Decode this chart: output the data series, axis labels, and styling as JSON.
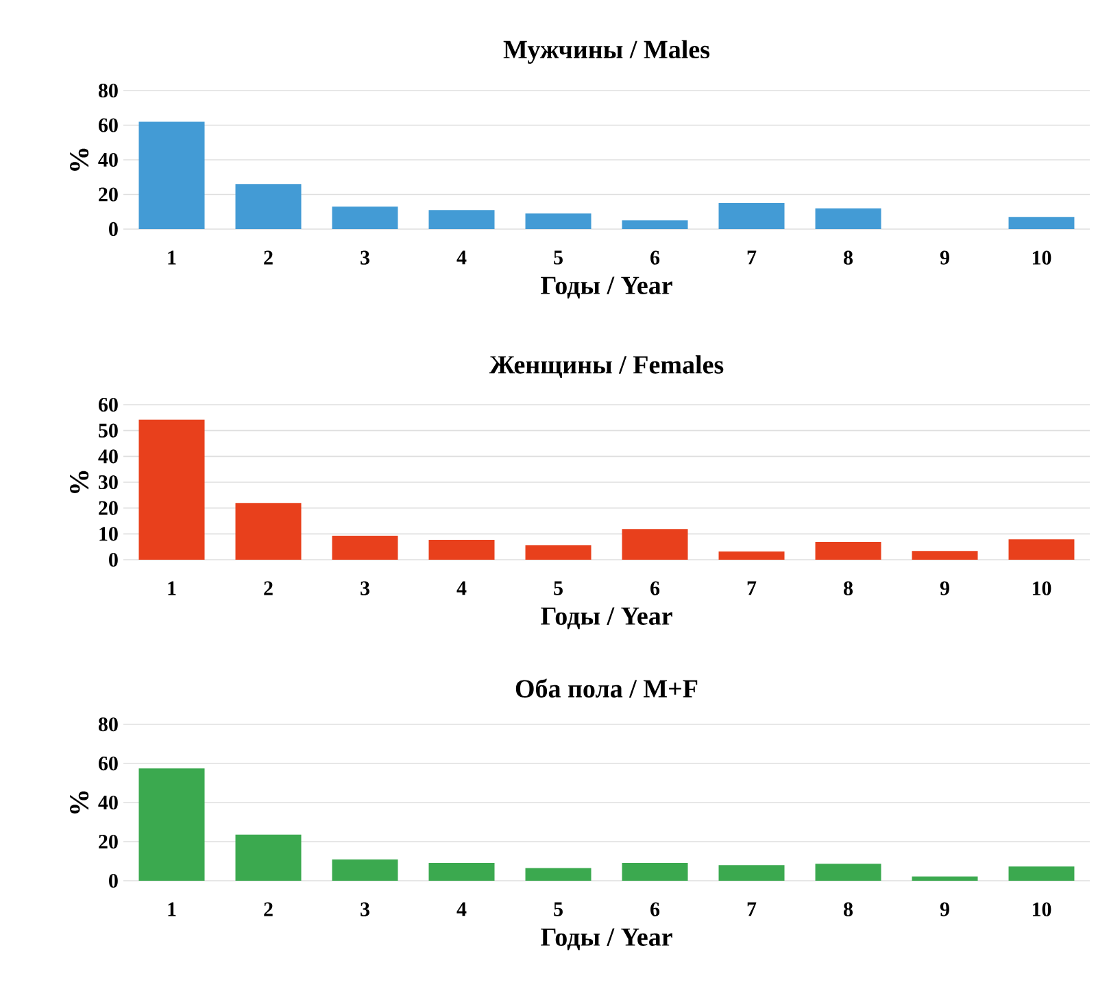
{
  "chart_data": [
    {
      "type": "bar",
      "title": "Мужчины / Males",
      "xlabel": "Годы / Year",
      "ylabel": "%",
      "categories": [
        "1",
        "2",
        "3",
        "4",
        "5",
        "6",
        "7",
        "8",
        "9",
        "10"
      ],
      "values": [
        62,
        26,
        13,
        11,
        9,
        5,
        15,
        12,
        0,
        7
      ],
      "color": "#439bd5",
      "ylim": [
        0,
        80
      ],
      "yticks": [
        0,
        20,
        40,
        60,
        80
      ],
      "grid": "y"
    },
    {
      "type": "bar",
      "title": "Женщины / Females",
      "xlabel": "Годы / Year",
      "ylabel": "%",
      "categories": [
        "1",
        "2",
        "3",
        "4",
        "5",
        "6",
        "7",
        "8",
        "9",
        "10"
      ],
      "values": [
        54.2,
        22,
        9.3,
        7.7,
        5.6,
        11.9,
        3.2,
        6.9,
        3.4,
        7.9
      ],
      "color": "#e8401c",
      "ylim": [
        0,
        60
      ],
      "yticks": [
        0,
        10,
        20,
        30,
        40,
        50,
        60
      ],
      "grid": "y"
    },
    {
      "type": "bar",
      "title": "Оба пола / M+F",
      "xlabel": "Годы / Year",
      "ylabel": "%",
      "categories": [
        "1",
        "2",
        "3",
        "4",
        "5",
        "6",
        "7",
        "8",
        "9",
        "10"
      ],
      "values": [
        57.5,
        23.6,
        10.9,
        9.1,
        6.5,
        9.1,
        8,
        8.7,
        2.2,
        7.3
      ],
      "color": "#3ba94f",
      "ylim": [
        0,
        80
      ],
      "yticks": [
        0,
        20,
        40,
        60,
        80
      ],
      "grid": "y"
    }
  ]
}
